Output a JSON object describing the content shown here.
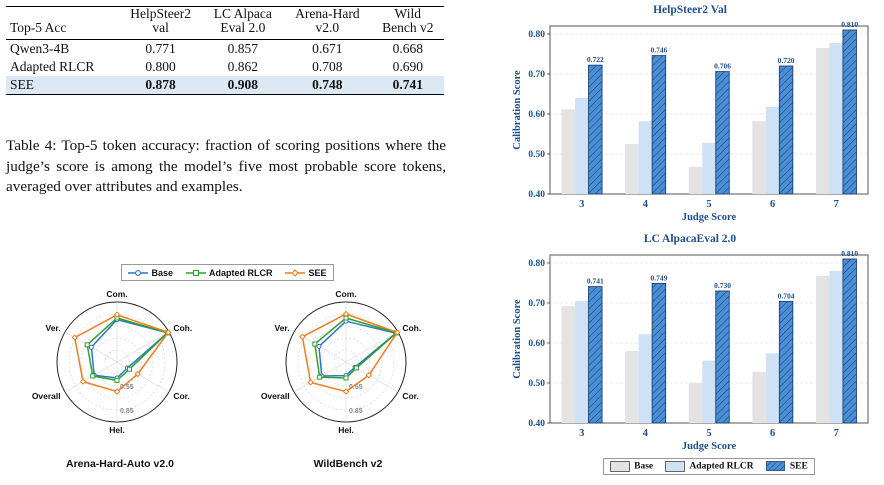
{
  "table": {
    "headers": [
      "Top-5 Acc",
      "HelpSteer2\nval",
      "LC Alpaca\nEval 2.0",
      "Arena-Hard\nv2.0",
      "Wild\nBench v2"
    ],
    "header_lines": [
      [
        "Top-5 Acc"
      ],
      [
        "HelpSteer2",
        "val"
      ],
      [
        "LC Alpaca",
        "Eval 2.0"
      ],
      [
        "Arena-Hard",
        "v2.0"
      ],
      [
        "Wild",
        "Bench v2"
      ]
    ],
    "rows": [
      {
        "name": "Qwen3-4B",
        "values": [
          "0.771",
          "0.857",
          "0.671",
          "0.668"
        ]
      },
      {
        "name": "Adapted RLCR",
        "values": [
          "0.800",
          "0.862",
          "0.708",
          "0.690"
        ]
      },
      {
        "name": "SEE",
        "values": [
          "0.878",
          "0.908",
          "0.748",
          "0.741"
        ]
      }
    ],
    "caption": "Table 4: Top-5 token accuracy: fraction of scoring positions where the judge’s score is among the model’s five most probable score tokens, averaged over attributes and examples."
  },
  "radar": {
    "legend": [
      "Base",
      "Adapted RLCR",
      "SEE"
    ],
    "colors": {
      "Base": "#2e75c9",
      "Adapted RLCR": "#2ca02c",
      "SEE": "#f07c1e"
    },
    "axes": [
      "Com.",
      "Coh.",
      "Cor.",
      "Hel.",
      "Overall",
      "Ver."
    ],
    "ring_labels": [
      "0.55",
      "0.85"
    ]
  },
  "chart_data": [
    {
      "type": "radar",
      "title": "Arena-Hard-Auto v2.0",
      "axes": [
        "Com.",
        "Coh.",
        "Cor.",
        "Hel.",
        "Overall",
        "Ver."
      ],
      "rlim": [
        0.25,
        1.0
      ],
      "series": [
        {
          "name": "Base",
          "values": [
            0.78,
            0.98,
            0.4,
            0.45,
            0.58,
            0.62
          ]
        },
        {
          "name": "Adapted RLCR",
          "values": [
            0.8,
            0.98,
            0.43,
            0.48,
            0.6,
            0.68
          ]
        },
        {
          "name": "SEE",
          "values": [
            0.84,
            0.99,
            0.55,
            0.62,
            0.74,
            0.86
          ]
        }
      ]
    },
    {
      "type": "radar",
      "title": "WildBench v2",
      "axes": [
        "Com.",
        "Coh.",
        "Cor.",
        "Hel.",
        "Overall",
        "Ver."
      ],
      "rlim": [
        0.25,
        1.0
      ],
      "series": [
        {
          "name": "Base",
          "values": [
            0.76,
            0.97,
            0.38,
            0.42,
            0.6,
            0.64
          ]
        },
        {
          "name": "Adapted RLCR",
          "values": [
            0.8,
            0.98,
            0.4,
            0.45,
            0.63,
            0.7
          ]
        },
        {
          "name": "SEE",
          "values": [
            0.85,
            0.99,
            0.58,
            0.62,
            0.76,
            0.88
          ]
        }
      ]
    },
    {
      "type": "bar",
      "title": "HelpSteer2 Val",
      "xlabel": "Judge Score",
      "ylabel": "Calibration Score",
      "categories": [
        "3",
        "4",
        "5",
        "6",
        "7"
      ],
      "ylim": [
        0.4,
        0.82
      ],
      "yticks": [
        "0.40",
        "0.50",
        "0.60",
        "0.70",
        "0.80"
      ],
      "series": [
        {
          "name": "Base",
          "values": [
            0.612,
            0.525,
            0.468,
            0.582,
            0.765
          ]
        },
        {
          "name": "Adapted RLCR",
          "values": [
            0.64,
            0.582,
            0.528,
            0.618,
            0.778
          ]
        },
        {
          "name": "SEE",
          "values": [
            0.722,
            0.746,
            0.706,
            0.72,
            0.81
          ],
          "labels": [
            "0.722",
            "0.746",
            "0.706",
            "0.720",
            "0.810"
          ]
        }
      ]
    },
    {
      "type": "bar",
      "title": "LC AlpacaEval 2.0",
      "xlabel": "Judge Score",
      "ylabel": "Calibration Score",
      "categories": [
        "3",
        "4",
        "5",
        "6",
        "7"
      ],
      "ylim": [
        0.4,
        0.82
      ],
      "yticks": [
        "0.40",
        "0.50",
        "0.60",
        "0.70",
        "0.80"
      ],
      "series": [
        {
          "name": "Base",
          "values": [
            0.692,
            0.58,
            0.5,
            0.528,
            0.768
          ]
        },
        {
          "name": "Adapted RLCR",
          "values": [
            0.705,
            0.622,
            0.556,
            0.574,
            0.78
          ]
        },
        {
          "name": "SEE",
          "values": [
            0.741,
            0.749,
            0.73,
            0.704,
            0.81
          ],
          "labels": [
            "0.741",
            "0.749",
            "0.730",
            "0.704",
            "0.810"
          ]
        }
      ]
    }
  ],
  "bar_legend": [
    "Base",
    "Adapted RLCR",
    "SEE"
  ],
  "bar_colors": {
    "Base": "#e3e3e3",
    "Adapted RLCR": "#cfe2f5",
    "SEE": "#4a8fd6",
    "accent": "#1f4e8c"
  }
}
